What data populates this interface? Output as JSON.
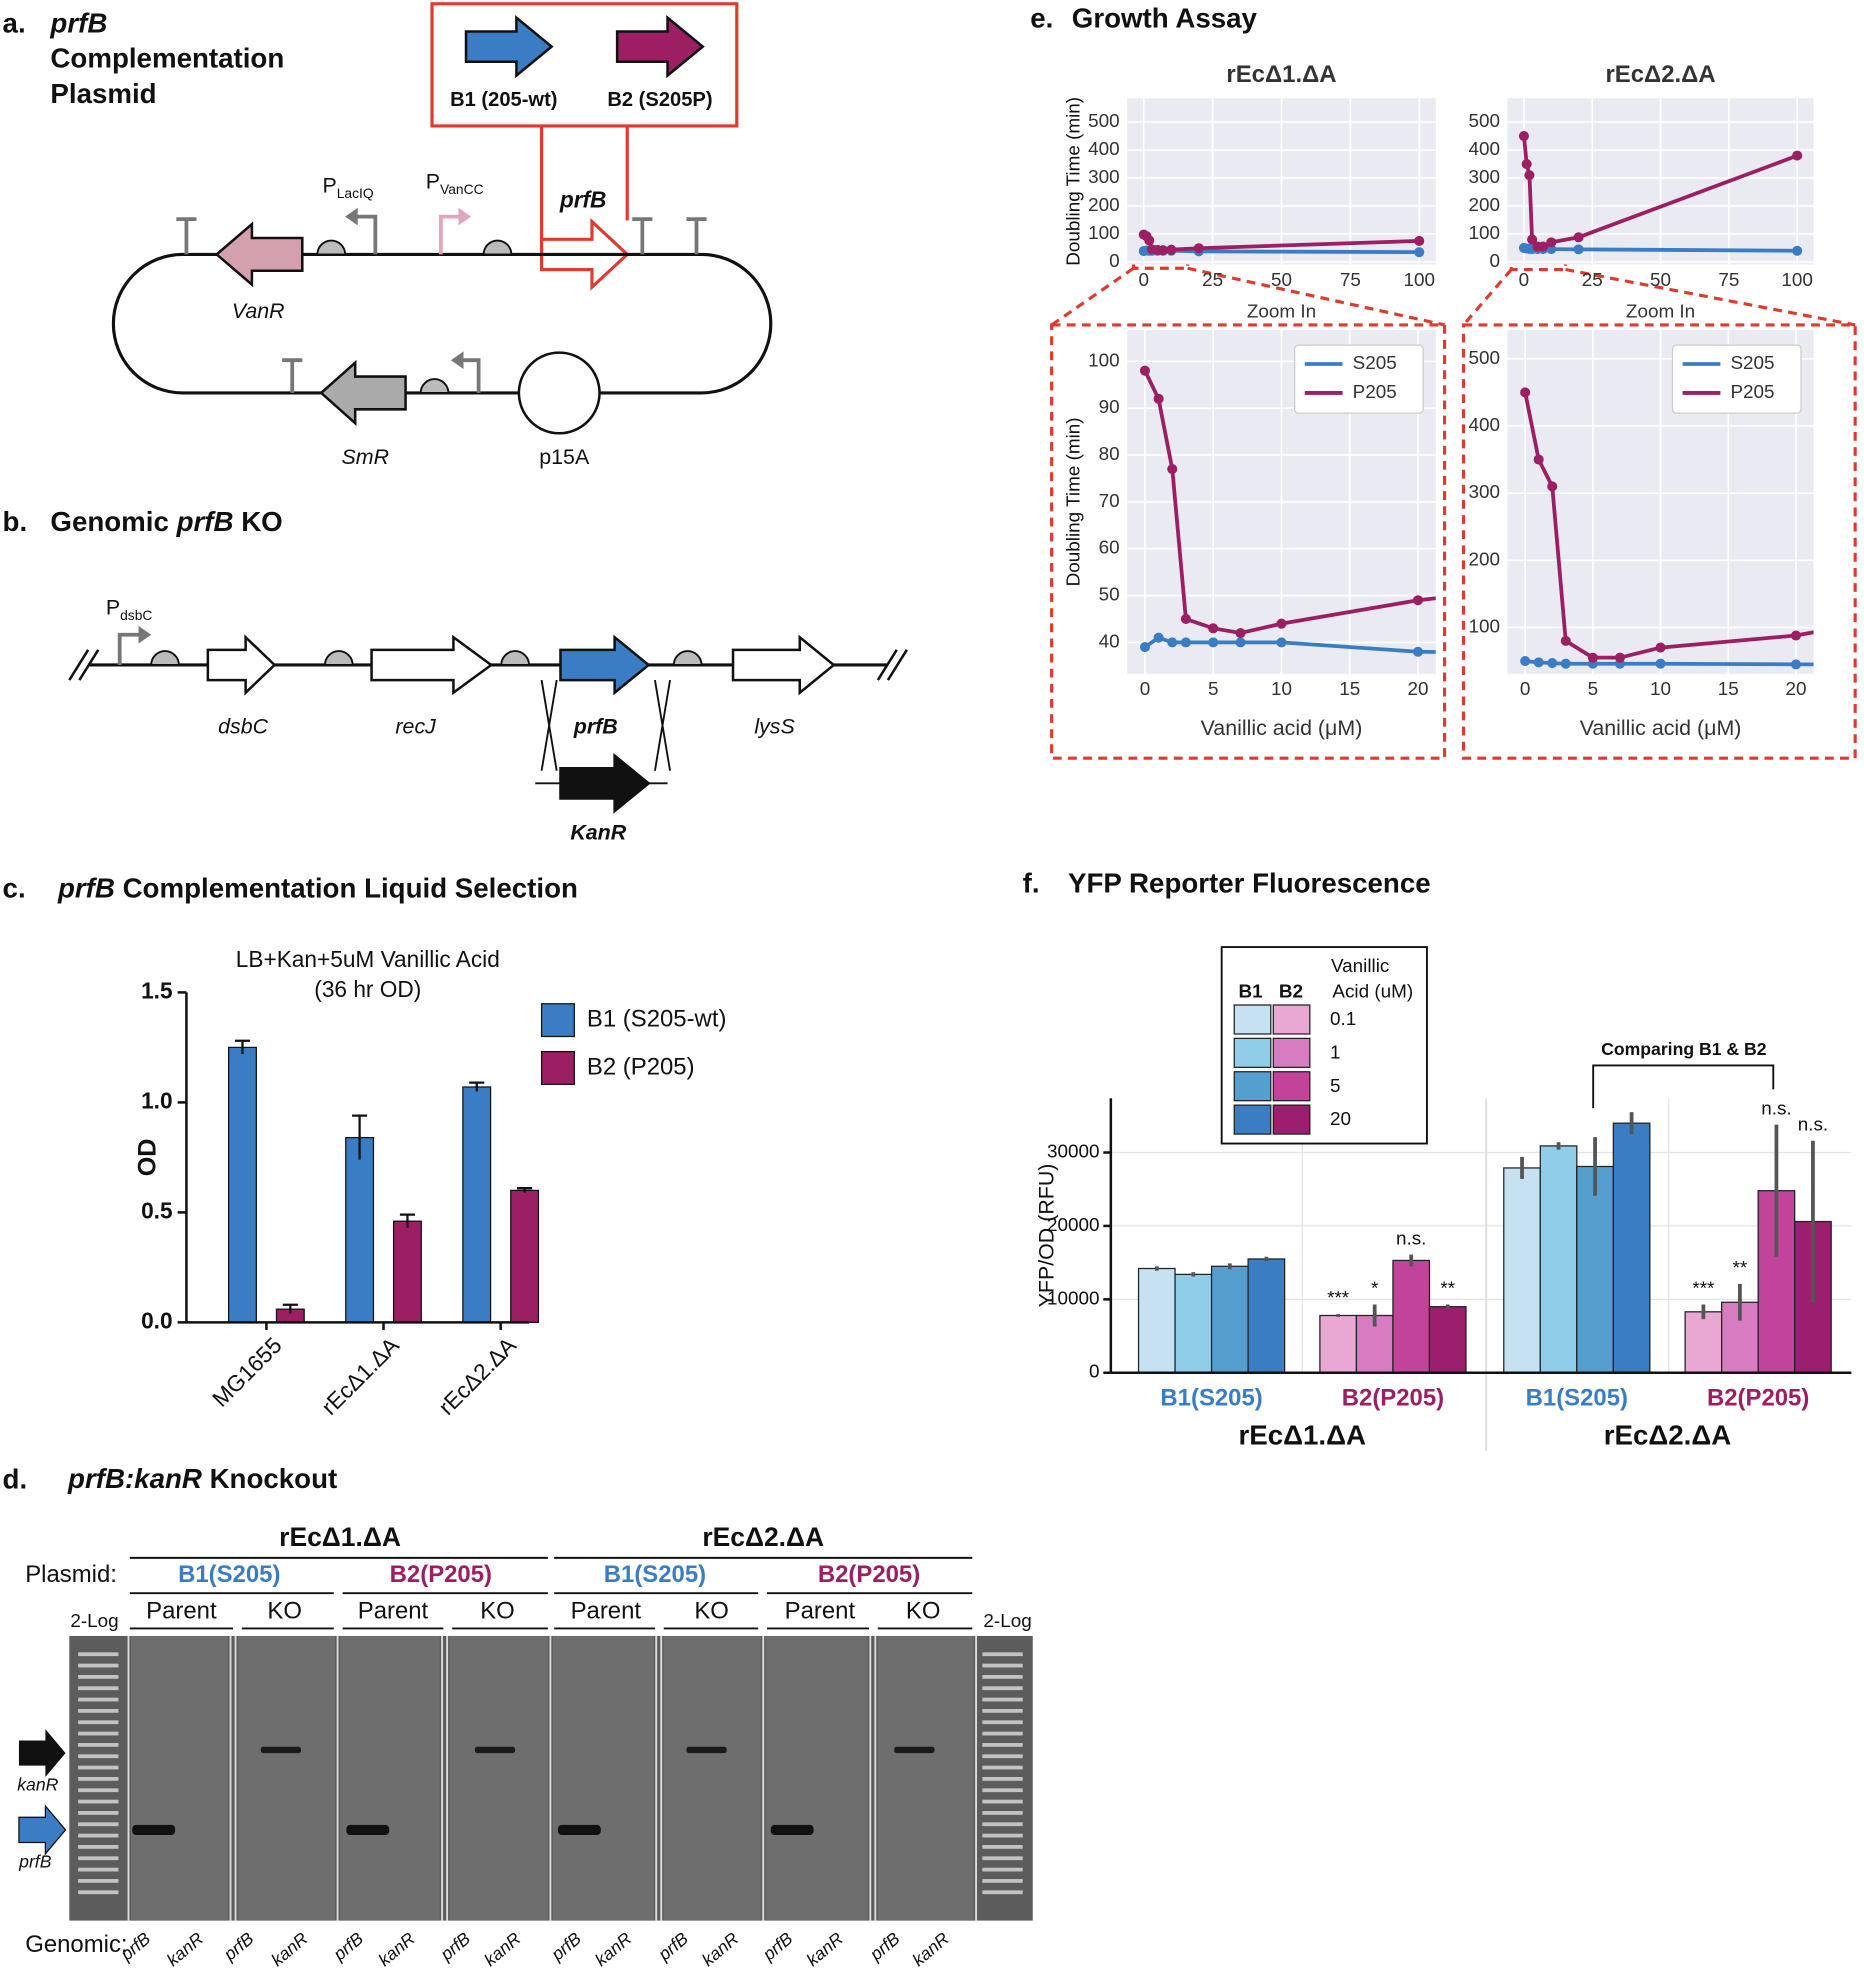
{
  "a": {
    "label": "a.",
    "title": [
      "prfB",
      "Complementation",
      "Plasmid"
    ],
    "b1": "B1 (205-wt)",
    "b2": "B2 (S205P)",
    "p1": "P",
    "p1_sub": "LacIQ",
    "p2": "P",
    "p2_sub": "VanCC",
    "insert": "prfB",
    "vanr": "VanR",
    "smr": "SmR",
    "ori": "p15A"
  },
  "b": {
    "label": "b.",
    "title": [
      "Genomic ",
      "prfB",
      " KO"
    ],
    "p": "P",
    "p_sub": "dsbC",
    "genes": [
      "dsbC",
      "recJ",
      "prfB",
      "lysS"
    ],
    "kanr": "KanR"
  },
  "c": {
    "label": "c.",
    "title": [
      "prfB",
      " Complementation Liquid Selection"
    ]
  },
  "d": {
    "label": "d.",
    "title": [
      "prfB:kanR",
      " Knockout"
    ],
    "strains": [
      "rEcΔ1.ΔA",
      "rEcΔ2.ΔA"
    ],
    "plasmid_label": "Plasmid:",
    "plasmids": [
      "B1(S205)",
      "B2(P205)",
      "B1(S205)",
      "B2(P205)"
    ],
    "lanes": [
      "Parent",
      "KO",
      "Parent",
      "KO",
      "Parent",
      "KO",
      "Parent",
      "KO"
    ],
    "ladder": [
      "2-Log",
      "2-Log"
    ],
    "arrows": [
      "kanR",
      "prfB"
    ],
    "genomic_label": "Genomic:",
    "genomic": [
      "prfB",
      "kanR",
      "prfB",
      "kanR",
      "prfB",
      "kanR",
      "prfB",
      "kanR",
      "prfB",
      "kanR",
      "prfB",
      "kanR",
      "prfB",
      "kanR",
      "prfB",
      "kanR"
    ]
  },
  "e": {
    "label": "e.",
    "title": "Growth Assay"
  },
  "f": {
    "label": "f.",
    "title": "YFP Reporter Fluorescence"
  },
  "chart_data": [
    {
      "type": "bar",
      "title": "LB+Kan+5uM Vanillic Acid",
      "subtitle": "(36 hr OD)",
      "ylabel": "OD",
      "categories": [
        "MG1655",
        "rEcΔ1.ΔA",
        "rEcΔ2.ΔA"
      ],
      "series": [
        {
          "name": "B1 (S205-wt)",
          "color": "#3b7dc4",
          "values": [
            1.25,
            0.84,
            1.07
          ],
          "errors": [
            0.03,
            0.1,
            0.02
          ]
        },
        {
          "name": "B2 (P205)",
          "color": "#9b1f62",
          "values": [
            0.06,
            0.46,
            0.6
          ],
          "errors": [
            0.02,
            0.03,
            0.01
          ]
        }
      ],
      "ylim": [
        0,
        1.5
      ],
      "yticks": [
        {
          "value": 0,
          "label": "0.0"
        },
        {
          "value": 0.5,
          "label": "0.5"
        },
        {
          "value": 1,
          "label": "1.0"
        },
        {
          "value": 1.5,
          "label": "1.5"
        }
      ]
    },
    {
      "type": "line",
      "title": "rEcΔ1.ΔA",
      "ylabel": "Doubling Time (min)",
      "x": [
        0,
        1,
        2,
        3,
        5,
        7,
        10,
        20,
        100
      ],
      "series": [
        {
          "name": "S205",
          "color": "#3b7dc4",
          "values": [
            39,
            41,
            40,
            40,
            40,
            40,
            40,
            38,
            35
          ]
        },
        {
          "name": "P205",
          "color": "#9b1f62",
          "values": [
            98,
            92,
            77,
            45,
            43,
            42,
            44,
            49,
            75
          ]
        }
      ],
      "xlim": [
        -6,
        106
      ],
      "ylim": [
        -9,
        585
      ],
      "xticks": [
        0,
        25,
        50,
        75,
        100
      ],
      "yticks": [
        0,
        100,
        200,
        300,
        400,
        500
      ],
      "grid": true,
      "zoom": {
        "title": "Zoom In",
        "xlabel": "Vanillic acid  (μM)",
        "ylabel": "Doubling Time (min)",
        "xlim": [
          -1.3,
          21.3
        ],
        "ylim": [
          33.3,
          106.7
        ],
        "xticks": [
          0,
          5,
          10,
          15,
          20
        ],
        "yticks": [
          40,
          50,
          60,
          70,
          80,
          90,
          100
        ],
        "legend": "upper right"
      }
    },
    {
      "type": "line",
      "title": "rEcΔ2.ΔA",
      "x": [
        0,
        1,
        2,
        3,
        5,
        7,
        10,
        20,
        100
      ],
      "series": [
        {
          "name": "S205",
          "color": "#3b7dc4",
          "values": [
            50,
            48,
            47,
            46,
            46,
            46,
            46,
            45,
            40
          ]
        },
        {
          "name": "P205",
          "color": "#9b1f62",
          "values": [
            450,
            350,
            310,
            80,
            55,
            55,
            70,
            88,
            380
          ]
        }
      ],
      "xlim": [
        -6,
        106
      ],
      "ylim": [
        -9,
        585
      ],
      "xticks": [
        0,
        25,
        50,
        75,
        100
      ],
      "yticks": [
        0,
        100,
        200,
        300,
        400,
        500
      ],
      "grid": true,
      "zoom": {
        "title": "Zoom In",
        "xlabel": "Vanillic acid  (μM)",
        "xlim": [
          -1.3,
          21.3
        ],
        "ylim": [
          31,
          543
        ],
        "xticks": [
          0,
          5,
          10,
          15,
          20
        ],
        "yticks": [
          100,
          200,
          300,
          400,
          500
        ],
        "legend": "upper right"
      }
    },
    {
      "type": "grouped-bar",
      "ylabel": "YFP/OD (RFU)",
      "ylim": [
        0,
        37400
      ],
      "yticks": [
        0,
        10000,
        20000,
        30000
      ],
      "bracket": "Comparing B1 & B2",
      "legend": {
        "headers": [
          "B1",
          "B2",
          "Vanillic",
          "Acid (uM)"
        ],
        "levels": [
          0.1,
          1,
          5,
          20
        ]
      },
      "strains": [
        {
          "name": "rEcΔ1.ΔA",
          "groups": [
            {
              "name": "B1(S205)",
              "label_color": "#3b7dc4",
              "colors": [
                "#c6e2f2",
                "#8fcde8",
                "#559fcf",
                "#3a7dc3"
              ],
              "values": [
                14200,
                13400,
                14500,
                15500
              ],
              "errors": [
                300,
                300,
                400,
                300
              ]
            },
            {
              "name": "B2(P205)",
              "label_color": "#9b1f62",
              "colors": [
                "#e9a7d4",
                "#d77cc0",
                "#c1439a",
                "#9c1f6f"
              ],
              "values": [
                7800,
                7800,
                15300,
                9000
              ],
              "errors": [
                200,
                1500,
                800,
                300
              ],
              "annotations": [
                "***",
                "*",
                "n.s.",
                "**"
              ]
            }
          ]
        },
        {
          "name": "rEcΔ2.ΔA",
          "groups": [
            {
              "name": "B1(S205)",
              "label_color": "#3b7dc4",
              "colors": [
                "#c6e2f2",
                "#8fcde8",
                "#559fcf",
                "#3a7dc3"
              ],
              "values": [
                27900,
                30900,
                28100,
                34000
              ],
              "errors": [
                1500,
                500,
                4000,
                1500
              ]
            },
            {
              "name": "B2(P205)",
              "label_color": "#9b1f62",
              "colors": [
                "#e9a7d4",
                "#d77cc0",
                "#c1439a",
                "#9c1f6f"
              ],
              "values": [
                8300,
                9600,
                24800,
                20600
              ],
              "errors": [
                1000,
                2500,
                9000,
                11000
              ],
              "annotations": [
                "***",
                "**",
                "n.s.",
                "n.s."
              ]
            }
          ]
        }
      ]
    }
  ]
}
